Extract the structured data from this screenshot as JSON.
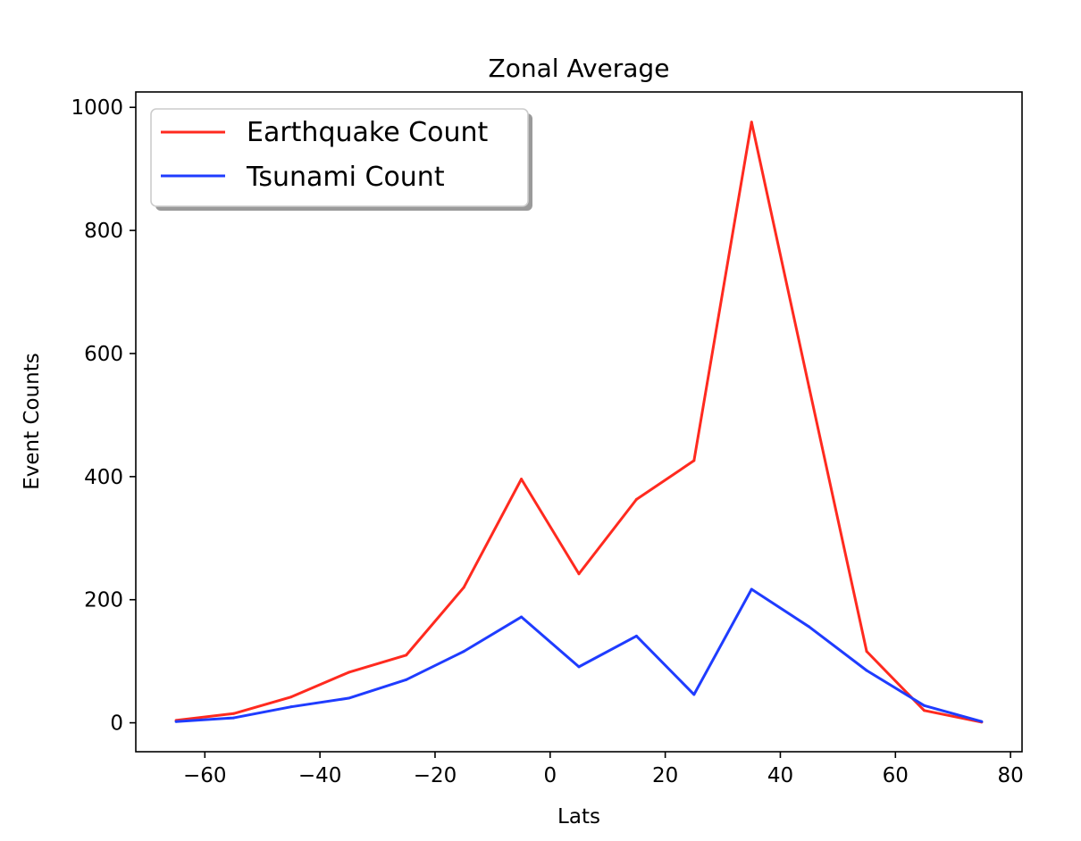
{
  "chart_data": {
    "type": "line",
    "title": "Zonal Average",
    "xlabel": "Lats",
    "ylabel": "Event Counts",
    "xlim": [
      -72,
      82
    ],
    "ylim": [
      -47,
      1025
    ],
    "xticks": [
      -60,
      -40,
      -20,
      0,
      20,
      40,
      60,
      80
    ],
    "xtick_labels": [
      "−60",
      "−40",
      "−20",
      "0",
      "20",
      "40",
      "60",
      "80"
    ],
    "yticks": [
      0,
      200,
      400,
      600,
      800,
      1000
    ],
    "ytick_labels": [
      "0",
      "200",
      "400",
      "600",
      "800",
      "1000"
    ],
    "grid": false,
    "legend_position": "top-left",
    "x": [
      -65,
      -55,
      -45,
      -35,
      -25,
      -15,
      -5,
      5,
      15,
      25,
      35,
      45,
      55,
      65,
      75
    ],
    "series": [
      {
        "name": "Earthquake Count",
        "color": "#ff2a1f",
        "values": [
          4,
          15,
          42,
          82,
          110,
          220,
          396,
          242,
          363,
          426,
          976,
          545,
          116,
          20,
          1
        ]
      },
      {
        "name": "Tsunami Count",
        "color": "#1f3cff",
        "values": [
          2,
          8,
          26,
          40,
          70,
          116,
          172,
          91,
          141,
          46,
          217,
          156,
          85,
          28,
          2
        ]
      }
    ]
  }
}
